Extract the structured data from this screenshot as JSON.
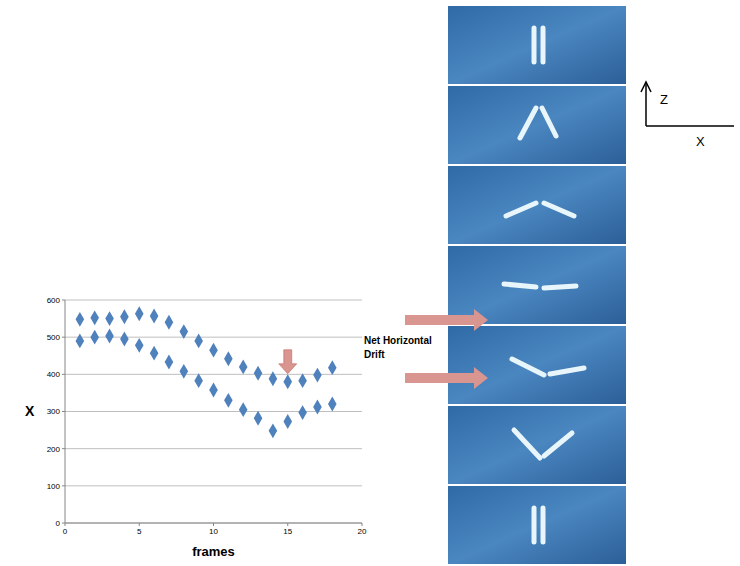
{
  "chart_data": {
    "type": "scatter",
    "xlabel": "frames",
    "ylabel": "X",
    "x": [
      1,
      2,
      3,
      4,
      5,
      6,
      7,
      8,
      9,
      10,
      11,
      12,
      13,
      14,
      15,
      16,
      17,
      18
    ],
    "series": [
      {
        "color": "#4f81bd",
        "marker": "diamond",
        "values": [
          548,
          552,
          550,
          555,
          563,
          557,
          540,
          515,
          490,
          465,
          442,
          420,
          403,
          388,
          380,
          383,
          398,
          418
        ]
      },
      {
        "color": "#4f81bd",
        "marker": "diamond",
        "values": [
          490,
          500,
          503,
          495,
          478,
          457,
          433,
          408,
          383,
          358,
          330,
          305,
          282,
          248,
          273,
          297,
          312,
          320
        ]
      }
    ],
    "xlim": [
      0,
      20
    ],
    "xticks": [
      0,
      5,
      10,
      15,
      20
    ],
    "ylim": [
      0,
      600
    ],
    "yticks": [
      0,
      100,
      200,
      300,
      400,
      500,
      600
    ],
    "grid": "y",
    "annotations": [
      {
        "text": "Net Horizontal Drift",
        "x": 15
      }
    ]
  },
  "diagram": {
    "axes": {
      "vertical": "Z",
      "horizontal": "X"
    }
  }
}
